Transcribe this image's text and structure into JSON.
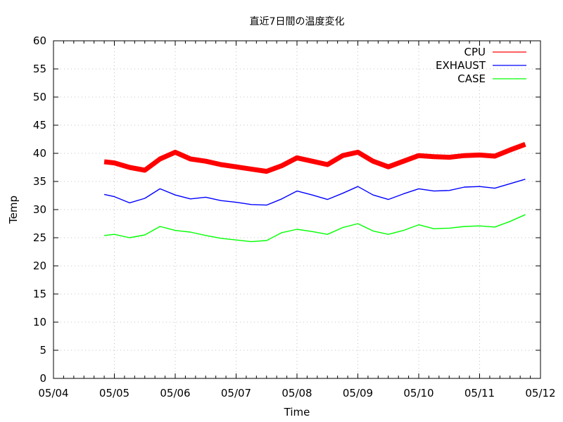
{
  "chart_data": {
    "type": "line",
    "title": "直近7日間の温度変化",
    "xlabel": "Time",
    "ylabel": "Temp",
    "xlim": [
      "05/04",
      "05/12"
    ],
    "ylim": [
      0,
      60
    ],
    "yticks": [
      0,
      5,
      10,
      15,
      20,
      25,
      30,
      35,
      40,
      45,
      50,
      55,
      60
    ],
    "xticks": [
      "05/04",
      "05/05",
      "05/06",
      "05/07",
      "05/08",
      "05/09",
      "05/10",
      "05/11",
      "05/12"
    ],
    "grid": true,
    "legend_position": "top-right",
    "x": [
      "05/04 20:00",
      "05/05 00:00",
      "05/05 06:00",
      "05/05 12:00",
      "05/05 18:00",
      "05/06 00:00",
      "05/06 06:00",
      "05/06 12:00",
      "05/06 18:00",
      "05/07 00:00",
      "05/07 06:00",
      "05/07 12:00",
      "05/07 18:00",
      "05/08 00:00",
      "05/08 06:00",
      "05/08 12:00",
      "05/08 18:00",
      "05/09 00:00",
      "05/09 06:00",
      "05/09 12:00",
      "05/09 18:00",
      "05/10 00:00",
      "05/10 06:00",
      "05/10 12:00",
      "05/10 18:00",
      "05/11 00:00",
      "05/11 06:00",
      "05/11 12:00",
      "05/11 18:00"
    ],
    "series": [
      {
        "name": "CPU",
        "color": "#ff0000",
        "values": [
          38.5,
          38.3,
          37.5,
          37.0,
          39.0,
          40.2,
          39.0,
          38.6,
          38.0,
          37.6,
          37.2,
          36.8,
          37.8,
          39.2,
          38.6,
          38.0,
          39.6,
          40.2,
          38.6,
          37.6,
          38.6,
          39.6,
          39.4,
          39.3,
          39.6,
          39.7,
          39.5,
          40.6,
          41.6
        ]
      },
      {
        "name": "EXHAUST",
        "color": "#0000ff",
        "values": [
          32.7,
          32.3,
          31.2,
          32.0,
          33.7,
          32.6,
          31.9,
          32.2,
          31.6,
          31.3,
          30.9,
          30.8,
          31.9,
          33.3,
          32.6,
          31.8,
          32.9,
          34.1,
          32.6,
          31.8,
          32.8,
          33.7,
          33.3,
          33.4,
          34.0,
          34.1,
          33.8,
          34.6,
          35.4
        ]
      },
      {
        "name": "CASE",
        "color": "#00ff00",
        "values": [
          25.4,
          25.6,
          25.0,
          25.5,
          27.0,
          26.3,
          26.0,
          25.4,
          24.9,
          24.6,
          24.3,
          24.5,
          25.9,
          26.5,
          26.1,
          25.6,
          26.8,
          27.5,
          26.2,
          25.6,
          26.3,
          27.3,
          26.6,
          26.7,
          27.0,
          27.1,
          26.9,
          27.9,
          29.1
        ]
      }
    ]
  }
}
